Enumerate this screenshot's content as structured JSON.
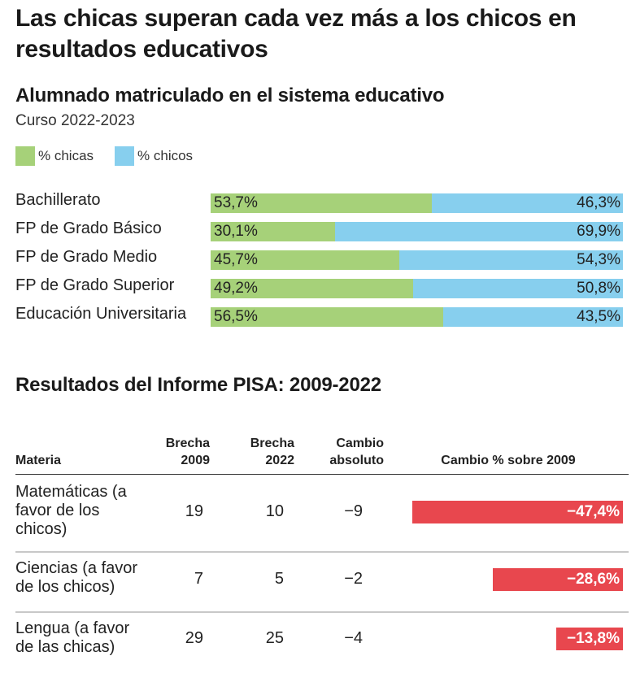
{
  "title": "Las chicas superan cada vez más a los chicos en resultados educativos",
  "section1": {
    "title": "Alumnado matriculado en el sistema educativo",
    "subtitle": "Curso 2022-2023"
  },
  "colors": {
    "chicas": "#a6d179",
    "chicos": "#87cfee",
    "negative": "#e8474e"
  },
  "section2": {
    "title": "Resultados del Informe PISA: 2009-2022",
    "headers": {
      "materia": "Materia",
      "brecha2009_l1": "Brecha",
      "brecha2009_l2": "2009",
      "brecha2022_l1": "Brecha",
      "brecha2022_l2": "2022",
      "cambio_l1": "Cambio",
      "cambio_l2": "absoluto",
      "cambio_pct": "Cambio % sobre 2009"
    }
  },
  "chart_data": [
    {
      "type": "bar",
      "stacked": true,
      "orientation": "horizontal",
      "title": "Alumnado matriculado en el sistema educativo",
      "subtitle": "Curso 2022-2023",
      "legend": "top-left",
      "categories": [
        "Bachillerato",
        "FP de Grado Básico",
        "FP de Grado Medio",
        "FP de Grado Superior",
        "Educación Universitaria"
      ],
      "series": [
        {
          "name": "% chicas",
          "values": [
            53.7,
            30.1,
            45.7,
            49.2,
            56.5
          ],
          "labels": [
            "53,7%",
            "30,1%",
            "45,7%",
            "49,2%",
            "56,5%"
          ]
        },
        {
          "name": "% chicos",
          "values": [
            46.3,
            69.9,
            54.3,
            50.8,
            43.5
          ],
          "labels": [
            "46,3%",
            "69,9%",
            "54,3%",
            "50,8%",
            "43,5%"
          ]
        }
      ]
    },
    {
      "type": "table",
      "title": "Resultados del Informe PISA: 2009-2022",
      "columns": [
        "Materia",
        "Brecha 2009",
        "Brecha 2022",
        "Cambio absoluto",
        "Cambio % sobre 2009"
      ],
      "rows": [
        {
          "materia_lines": [
            "Matemáticas (a",
            "favor de los",
            "chicos)"
          ],
          "b2009": "19",
          "b2022": "10",
          "cambio": "−9",
          "pct": -47.4,
          "pct_label": "−47,4%"
        },
        {
          "materia_lines": [
            "Ciencias (a favor",
            "de los chicos)"
          ],
          "b2009": "7",
          "b2022": "5",
          "cambio": "−2",
          "pct": -28.6,
          "pct_label": "−28,6%"
        },
        {
          "materia_lines": [
            "Lengua (a favor",
            "de las chicas)"
          ],
          "b2009": "29",
          "b2022": "25",
          "cambio": "−4",
          "pct": -13.8,
          "pct_label": "−13,8%"
        }
      ]
    }
  ]
}
